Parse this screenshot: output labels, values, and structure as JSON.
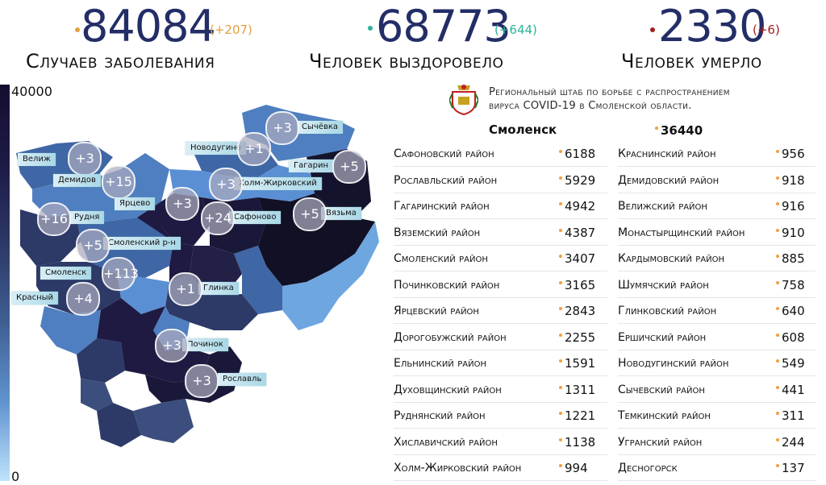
{
  "stats": [
    {
      "value": "84084",
      "delta": "(+207)",
      "label": "Случаев заболевания",
      "color": "#e5a040"
    },
    {
      "value": "68773",
      "delta": "(+644)",
      "label": "Человек выздоровело",
      "color": "#2bb39a"
    },
    {
      "value": "2330",
      "delta": "(+6)",
      "label": "Человек умерло",
      "color": "#a02020"
    }
  ],
  "legend": {
    "max": "40000",
    "min": "0"
  },
  "map_labels": [
    {
      "name": "Сычёвка",
      "delta": "+3"
    },
    {
      "name": "Новодугино",
      "delta": "+1"
    },
    {
      "name": "Велиж",
      "delta": "+3"
    },
    {
      "name": "Гагарин",
      "delta": "+5"
    },
    {
      "name": "Демидов",
      "delta": "+15"
    },
    {
      "name": "Холм-Жирковский",
      "delta": "+3"
    },
    {
      "name": "Ярцево",
      "delta": "+3"
    },
    {
      "name": "Рудня",
      "delta": "+16"
    },
    {
      "name": "Сафоново",
      "delta": "+24"
    },
    {
      "name": "Вязьма",
      "delta": "+5"
    },
    {
      "name": "Смоленский р-н",
      "delta": "+5"
    },
    {
      "name": "Смоленск",
      "delta": "+113"
    },
    {
      "name": "Глинка",
      "delta": "+1"
    },
    {
      "name": "Красный",
      "delta": "+4"
    },
    {
      "name": "Починок",
      "delta": "+3"
    },
    {
      "name": "Рославль",
      "delta": "+3"
    }
  ],
  "hq": {
    "line1": "Региональный штаб по борьбе с распространением",
    "line2": "вируса  COVID-19 в Смоленской области."
  },
  "city": {
    "name": "Смоленск",
    "value": "36440"
  },
  "left_column": [
    {
      "name": "Сафоновский район",
      "value": "6188"
    },
    {
      "name": "Рославльский район",
      "value": "5929"
    },
    {
      "name": "Гагаринский район",
      "value": "4942"
    },
    {
      "name": "Вяземский район",
      "value": "4387"
    },
    {
      "name": "Смоленский район",
      "value": "3407"
    },
    {
      "name": "Починковский район",
      "value": "3165"
    },
    {
      "name": "Ярцевский район",
      "value": "2843"
    },
    {
      "name": "Дорогобужский район",
      "value": "2255"
    },
    {
      "name": "Ельнинский район",
      "value": "1591"
    },
    {
      "name": "Духовщинский район",
      "value": "1311"
    },
    {
      "name": "Руднянский район",
      "value": "1221"
    },
    {
      "name": "Хиславичский район",
      "value": "1138"
    },
    {
      "name": "Холм-Жирковский район",
      "value": "994"
    }
  ],
  "right_column": [
    {
      "name": "Краснинский район",
      "value": "956"
    },
    {
      "name": "Демидовский район",
      "value": "918"
    },
    {
      "name": "Велижский район",
      "value": "916"
    },
    {
      "name": "Монастырщинский район",
      "value": "910"
    },
    {
      "name": "Кардымовский район",
      "value": "885"
    },
    {
      "name": "Шумячский район",
      "value": "758"
    },
    {
      "name": "Глинковский район",
      "value": "640"
    },
    {
      "name": "Ершичский район",
      "value": "608"
    },
    {
      "name": "Новодугинский район",
      "value": "549"
    },
    {
      "name": "Сычевский район",
      "value": "441"
    },
    {
      "name": "Темкинский район",
      "value": "311"
    },
    {
      "name": "Угранский район",
      "value": "244"
    },
    {
      "name": "Десногорск",
      "value": "137"
    }
  ],
  "icons": {
    "emblem": "smolensk-coat-of-arms-icon"
  }
}
